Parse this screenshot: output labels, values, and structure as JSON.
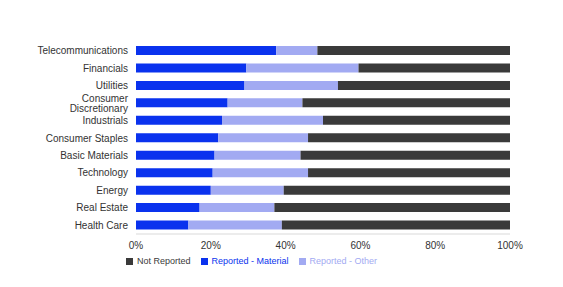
{
  "chart_data": {
    "type": "bar",
    "orientation": "horizontal",
    "stacked": true,
    "categories": [
      "Telecommunications",
      "Financials",
      "Utilities",
      "Consumer Discretionary",
      "Industrials",
      "Consumer Staples",
      "Basic Materials",
      "Technology",
      "Energy",
      "Real Estate",
      "Health Care"
    ],
    "series": [
      {
        "name": "Reported - Material",
        "color": "#0a32ee",
        "values": [
          37.5,
          29.5,
          29,
          24.5,
          23,
          22,
          21,
          20.5,
          20,
          17,
          14
        ]
      },
      {
        "name": "Reported - Other",
        "color": "#a2aaf2",
        "values": [
          11,
          30,
          25,
          20,
          27,
          24,
          23,
          25.5,
          19.5,
          20,
          25
        ]
      },
      {
        "name": "Not Reported",
        "color": "#3a3a3a",
        "values": [
          51.5,
          40.5,
          46,
          55.5,
          50,
          54,
          56,
          54,
          60.5,
          63,
          61
        ]
      }
    ],
    "xlim": [
      0,
      100
    ],
    "xticks": [
      {
        "value": 0,
        "label": "0%"
      },
      {
        "value": 20,
        "label": "20%"
      },
      {
        "value": 40,
        "label": "40%"
      },
      {
        "value": 60,
        "label": "60%"
      },
      {
        "value": 80,
        "label": "80%"
      },
      {
        "value": 100,
        "label": "100%"
      }
    ],
    "grid": false,
    "legend": "bottom"
  }
}
